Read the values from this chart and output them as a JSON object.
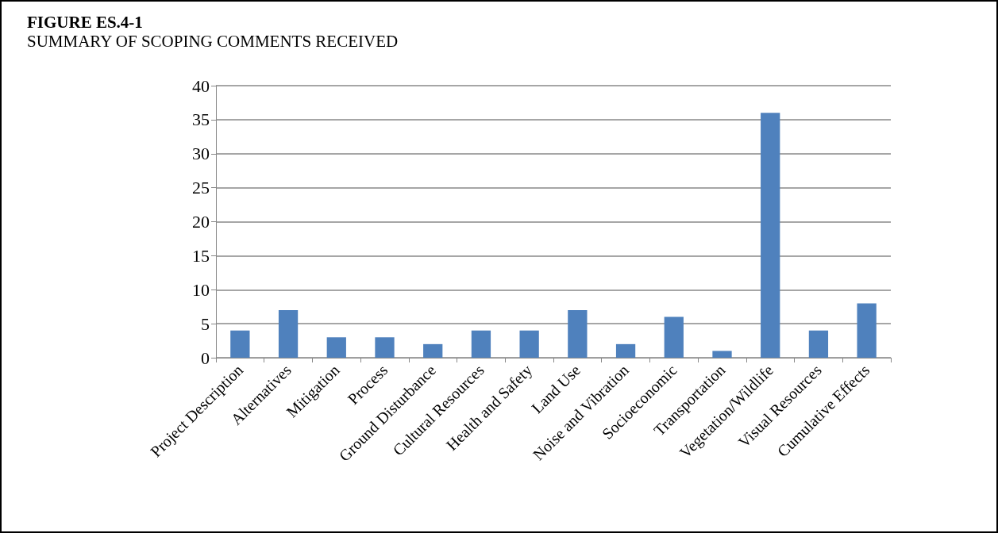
{
  "chart_data": {
    "type": "bar",
    "title": "FIGURE ES.4-1",
    "subtitle": "SUMMARY OF SCOPING COMMENTS RECEIVED",
    "categories": [
      "Project Description",
      "Alternatives",
      "Mitigation",
      "Process",
      "Ground Disturbance",
      "Cultural Resources",
      "Health and Safety",
      "Land Use",
      "Noise and Vibration",
      "Socioeconomic",
      "Transportation",
      "Vegetation/Wildlife",
      "Visual Resources",
      "Cumulative Effects"
    ],
    "values": [
      4,
      7,
      3,
      3,
      2,
      4,
      4,
      7,
      2,
      6,
      1,
      36,
      4,
      8
    ],
    "color": "#4f81bd",
    "ylim": [
      0,
      40
    ],
    "yticks": [
      0,
      5,
      10,
      15,
      20,
      25,
      30,
      35,
      40
    ],
    "grid": "y"
  }
}
